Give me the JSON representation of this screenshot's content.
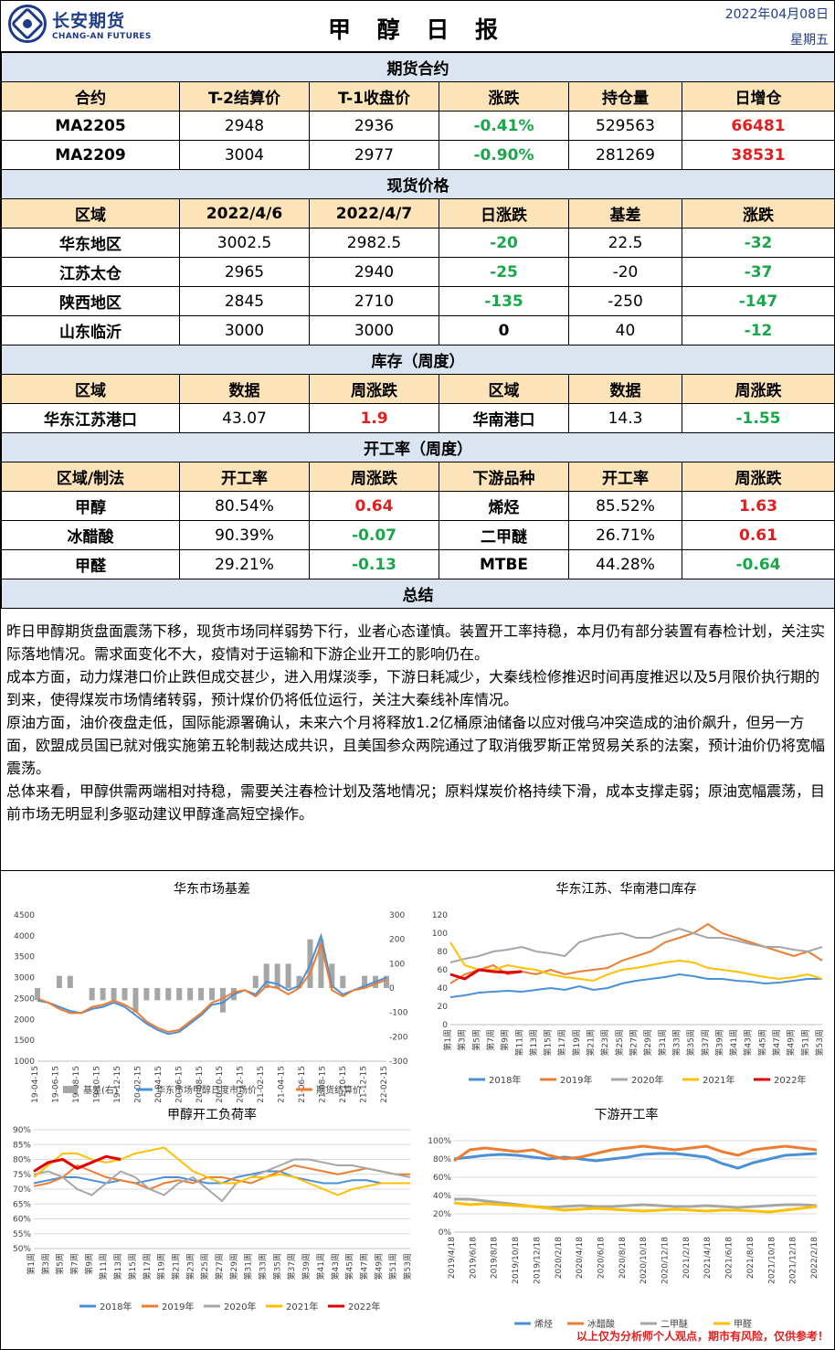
{
  "header": {
    "logo_cn": "长安期货",
    "logo_en": "CHANG-AN FUTURES",
    "title": "甲 醇 日 报",
    "date": "2022年04月08日",
    "weekday": "星期五"
  },
  "futures": {
    "section": "期货合约",
    "columns": [
      "合约",
      "T-2结算价",
      "T-1收盘价",
      "涨跌",
      "持仓量",
      "日增仓"
    ],
    "rows": [
      [
        "MA2205",
        "2948",
        "2936",
        "-0.41%",
        "529563",
        "66481"
      ],
      [
        "MA2209",
        "3004",
        "2977",
        "-0.90%",
        "281269",
        "38531"
      ]
    ]
  },
  "spot": {
    "section": "现货价格",
    "columns": [
      "区域",
      "2022/4/6",
      "2022/4/7",
      "日涨跌",
      "基差",
      "涨跌"
    ],
    "rows": [
      [
        "华东地区",
        "3002.5",
        "2982.5",
        "-20",
        "22.5",
        "-32"
      ],
      [
        "江苏太仓",
        "2965",
        "2940",
        "-25",
        "-20",
        "-37"
      ],
      [
        "陕西地区",
        "2845",
        "2710",
        "-135",
        "-250",
        "-147"
      ],
      [
        "山东临沂",
        "3000",
        "3000",
        "0",
        "40",
        "-12"
      ]
    ]
  },
  "inventory": {
    "section": "库存（周度）",
    "columns": [
      "区域",
      "数据",
      "周涨跌",
      "区域",
      "数据",
      "周涨跌"
    ],
    "rows": [
      [
        "华东江苏港口",
        "43.07",
        "1.9",
        "华南港口",
        "14.3",
        "-1.55"
      ]
    ]
  },
  "operating": {
    "section": "开工率（周度）",
    "columns": [
      "区域/制法",
      "开工率",
      "周涨跌",
      "下游品种",
      "开工率",
      "周涨跌"
    ],
    "rows": [
      [
        "甲醇",
        "80.54%",
        "0.64",
        "烯烃",
        "85.52%",
        "1.63"
      ],
      [
        "冰醋酸",
        "90.39%",
        "-0.07",
        "二甲醚",
        "26.71%",
        "0.61"
      ],
      [
        "甲醛",
        "29.21%",
        "-0.13",
        "MTBE",
        "44.28%",
        "-0.64"
      ]
    ]
  },
  "summary": {
    "section": "总结",
    "paragraphs": [
      "昨日甲醇期货盘面震荡下移，现货市场同样弱势下行，业者心态谨慎。装置开工率持稳，本月仍有部分装置有春检计划，关注实际落地情况。需求面变化不大，疫情对于运输和下游企业开工的影响仍在。",
      "成本方面，动力煤港口价止跌但成交甚少，进入用煤淡季，下游日耗减少，大秦线检修推迟时间再度推迟以及5月限价执行期的到来，使得煤炭市场情绪转弱，预计煤价仍将低位运行，关注大秦线补库情况。",
      "原油方面，油价夜盘走低，国际能源署确认，未来六个月将释放1.2亿桶原油储备以应对俄乌冲突造成的油价飙升，但另一方面，欧盟成员国已就对俄实施第五轮制裁达成共识，且美国参众两院通过了取消俄罗斯正常贸易关系的法案，预计油价仍将宽幅震荡。",
      "总体来看，甲醇供需两端相对持稳，需要关注春检计划及落地情况；原料煤炭价格持续下滑，成本支撑走弱；原油宽幅震荡，目前市场无明显利多驱动建议甲醇逢高短空操作。"
    ]
  },
  "chart_data": [
    {
      "type": "line",
      "title": "华东市场基差",
      "yticks": [
        "4500",
        "4000",
        "3500",
        "3000",
        "2500",
        "2000",
        "1500",
        "1000"
      ],
      "y2ticks": [
        "300",
        "200",
        "100",
        "0",
        "-100",
        "-200",
        "-300"
      ],
      "xticks": [
        "2019-04-15",
        "2019-06-15",
        "2019-08-15",
        "2019-10-15",
        "2019-12-15",
        "2020-02-15",
        "2020-04-15",
        "2020-06-15",
        "2020-08-15",
        "2020-10-15",
        "2020-12-15",
        "2021-02-15",
        "2021-04-15",
        "2021-06-15",
        "2021-08-15",
        "2021-10-15",
        "2021-12-15",
        "2022-02-15"
      ],
      "legend": [
        "基差(右)",
        "华东市场甲醇日度市场价",
        "期货结算价"
      ],
      "colors": [
        "#a6a6a6",
        "#4a90d9",
        "#ed7d31"
      ],
      "series_price": [
        2450,
        2400,
        2300,
        2200,
        2150,
        2250,
        2300,
        2400,
        2300,
        2100,
        1900,
        1750,
        1650,
        1700,
        1900,
        2100,
        2350,
        2400,
        2600,
        2700,
        2600,
        2900,
        2850,
        2700,
        2800,
        3300,
        4000,
        2800,
        2600,
        2700,
        2800,
        2900,
        3000
      ],
      "series_futures": [
        2500,
        2400,
        2250,
        2150,
        2150,
        2300,
        2350,
        2450,
        2350,
        2200,
        1950,
        1800,
        1700,
        1750,
        1950,
        2150,
        2400,
        2500,
        2650,
        2700,
        2550,
        2800,
        2750,
        2600,
        2750,
        3100,
        3800,
        2700,
        2550,
        2700,
        2750,
        2850,
        2950
      ],
      "series_basis": [
        -50,
        0,
        50,
        50,
        0,
        -50,
        -50,
        -50,
        -50,
        -100,
        -50,
        -50,
        -50,
        -50,
        -50,
        -50,
        -50,
        -100,
        -50,
        0,
        50,
        100,
        100,
        100,
        50,
        200,
        200,
        100,
        50,
        0,
        50,
        50,
        50
      ]
    },
    {
      "type": "line",
      "title": "华东江苏、华南港口库存",
      "yticks": [
        "120",
        "100",
        "80",
        "60",
        "40",
        "20",
        "0"
      ],
      "xticks": [
        "第1周",
        "第3周",
        "第5周",
        "第7周",
        "第9周",
        "第11周",
        "第13周",
        "第15周",
        "第17周",
        "第19周",
        "第21周",
        "第23周",
        "第25周",
        "第27周",
        "第29周",
        "第31周",
        "第33周",
        "第35周",
        "第37周",
        "第39周",
        "第41周",
        "第43周",
        "第45周",
        "第47周",
        "第49周",
        "第51周",
        "第53周"
      ],
      "legend": [
        "2018年",
        "2019年",
        "2020年",
        "2021年",
        "2022年"
      ],
      "colors": [
        "#4a90d9",
        "#ed7d31",
        "#a6a6a6",
        "#ffc000",
        "#e00000"
      ],
      "series": [
        [
          30,
          32,
          35,
          36,
          37,
          36,
          38,
          40,
          38,
          42,
          38,
          40,
          45,
          48,
          50,
          52,
          55,
          53,
          50,
          50,
          48,
          47,
          45,
          46,
          48,
          50,
          50
        ],
        [
          45,
          55,
          60,
          65,
          55,
          58,
          55,
          60,
          55,
          58,
          60,
          62,
          70,
          75,
          80,
          90,
          95,
          100,
          110,
          100,
          95,
          90,
          85,
          80,
          75,
          80,
          70
        ],
        [
          68,
          72,
          75,
          80,
          82,
          85,
          80,
          78,
          75,
          90,
          95,
          98,
          100,
          95,
          95,
          100,
          105,
          100,
          95,
          95,
          92,
          88,
          85,
          85,
          82,
          80,
          85
        ],
        [
          90,
          65,
          60,
          60,
          65,
          62,
          60,
          55,
          52,
          50,
          48,
          55,
          60,
          62,
          65,
          68,
          70,
          68,
          62,
          60,
          58,
          55,
          52,
          50,
          52,
          55,
          50
        ],
        [
          55,
          50,
          60,
          58,
          57,
          58
        ]
      ]
    },
    {
      "type": "line",
      "title": "甲醇开工负荷率",
      "yticks": [
        "90%",
        "85%",
        "80%",
        "75%",
        "70%",
        "65%",
        "60%",
        "55%",
        "50%"
      ],
      "xticks": [
        "第1周",
        "第3周",
        "第5周",
        "第7周",
        "第9周",
        "第11周",
        "第13周",
        "第15周",
        "第17周",
        "第19周",
        "第21周",
        "第23周",
        "第25周",
        "第27周",
        "第29周",
        "第31周",
        "第33周",
        "第35周",
        "第37周",
        "第39周",
        "第41周",
        "第43周",
        "第45周",
        "第47周",
        "第49周",
        "第51周",
        "第53周"
      ],
      "legend": [
        "2018年",
        "2019年",
        "2020年",
        "2021年",
        "2022年"
      ],
      "colors": [
        "#4a90d9",
        "#ed7d31",
        "#a6a6a6",
        "#ffc000",
        "#e00000"
      ],
      "series": [
        [
          72,
          73,
          74,
          74,
          73,
          72,
          73,
          72,
          73,
          74,
          74,
          73,
          72,
          72,
          74,
          75,
          76,
          76,
          74,
          73,
          72,
          72,
          73,
          73,
          72,
          72,
          72
        ],
        [
          71,
          72,
          74,
          78,
          76,
          74,
          73,
          72,
          70,
          72,
          73,
          72,
          74,
          74,
          73,
          72,
          74,
          76,
          78,
          77,
          76,
          75,
          76,
          77,
          76,
          75,
          75
        ],
        [
          75,
          76,
          74,
          70,
          68,
          72,
          76,
          74,
          70,
          68,
          72,
          74,
          70,
          66,
          72,
          74,
          76,
          78,
          80,
          80,
          79,
          78,
          78,
          77,
          76,
          75,
          74
        ],
        [
          74,
          78,
          82,
          82,
          80,
          79,
          80,
          82,
          83,
          84,
          80,
          76,
          74,
          72,
          72,
          74,
          74,
          75,
          74,
          72,
          70,
          68,
          70,
          71,
          72,
          72,
          72
        ],
        [
          76,
          79,
          80,
          77,
          79,
          81,
          80
        ]
      ]
    },
    {
      "type": "line",
      "title": "下游开工率",
      "yticks": [
        "100%",
        "80%",
        "60%",
        "40%",
        "20%",
        "0%"
      ],
      "xticks": [
        "2019/4/18",
        "2019/6/18",
        "2019/8/18",
        "2019/10/18",
        "2019/12/18",
        "2020/2/18",
        "2020/4/18",
        "2020/6/18",
        "2020/8/18",
        "2020/10/18",
        "2020/12/18",
        "2021/2/18",
        "2021/4/18",
        "2021/6/18",
        "2021/8/18",
        "2021/10/18",
        "2021/12/18",
        "2022/2/18"
      ],
      "legend": [
        "烯烃",
        "冰醋酸",
        "二甲醚",
        "甲醛"
      ],
      "colors": [
        "#4a90d9",
        "#ed7d31",
        "#a6a6a6",
        "#ffc000"
      ],
      "series": [
        [
          80,
          82,
          84,
          85,
          84,
          82,
          80,
          82,
          80,
          78,
          80,
          82,
          85,
          86,
          86,
          84,
          82,
          75,
          70,
          76,
          80,
          84,
          85,
          86
        ],
        [
          78,
          90,
          92,
          90,
          88,
          90,
          84,
          80,
          82,
          86,
          90,
          92,
          94,
          92,
          90,
          92,
          94,
          88,
          84,
          90,
          92,
          94,
          92,
          90
        ],
        [
          36,
          36,
          34,
          32,
          30,
          28,
          27,
          28,
          29,
          28,
          28,
          29,
          30,
          29,
          28,
          28,
          29,
          28,
          27,
          28,
          29,
          30,
          30,
          29
        ],
        [
          32,
          30,
          31,
          30,
          29,
          28,
          26,
          24,
          25,
          26,
          25,
          24,
          23,
          24,
          25,
          24,
          23,
          24,
          24,
          23,
          22,
          24,
          26,
          28
        ]
      ]
    }
  ],
  "footer": "以上仅为分析师个人观点，期市有风险，仅供参考！"
}
